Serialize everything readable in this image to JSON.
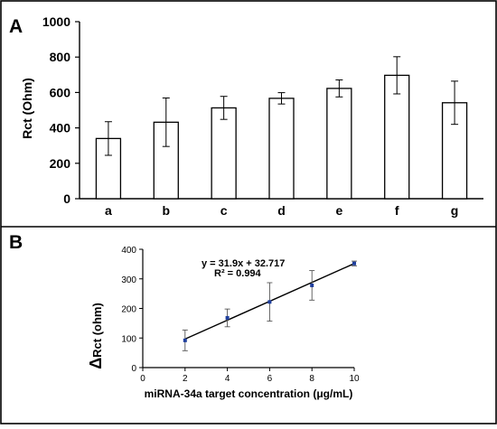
{
  "chart_data": [
    {
      "type": "bar",
      "panel_label": "A",
      "ylabel": "Rct (Ohm)",
      "xlabel": "",
      "categories": [
        "a",
        "b",
        "c",
        "d",
        "e",
        "f",
        "g"
      ],
      "values": [
        340,
        432,
        513,
        567,
        623,
        697,
        542
      ],
      "errors": [
        95,
        137,
        65,
        32,
        48,
        105,
        122
      ],
      "ylim": [
        0,
        1000
      ],
      "yticks": [
        "0",
        "200",
        "400",
        "600",
        "800",
        "1000"
      ],
      "grid": false,
      "legend": "none",
      "colors": {
        "bar_fill": "#ffffff",
        "bar_stroke": "#000000"
      }
    },
    {
      "type": "scatter",
      "panel_label": "B",
      "xlabel": "miRNA-34a target concentration (μg/mL)",
      "ylabel_delta": "Δ",
      "ylabel": "Rct (ohm)",
      "x": [
        2,
        4,
        6,
        8,
        10
      ],
      "y": [
        92,
        168,
        222,
        278,
        352
      ],
      "errors": [
        35,
        30,
        65,
        50,
        8
      ],
      "xlim": [
        0,
        10
      ],
      "ylim": [
        0,
        400
      ],
      "xticks": [
        "0",
        "2",
        "4",
        "6",
        "8",
        "10"
      ],
      "yticks": [
        "0",
        "100",
        "200",
        "300",
        "400"
      ],
      "fit": {
        "slope": 31.9,
        "intercept": 32.717,
        "equation": "y = 31.9x + 32.717",
        "r2": "R² = 0.994"
      },
      "grid": false,
      "legend": "none",
      "colors": {
        "marker": "#1f3f9e",
        "line": "#000000"
      }
    }
  ]
}
